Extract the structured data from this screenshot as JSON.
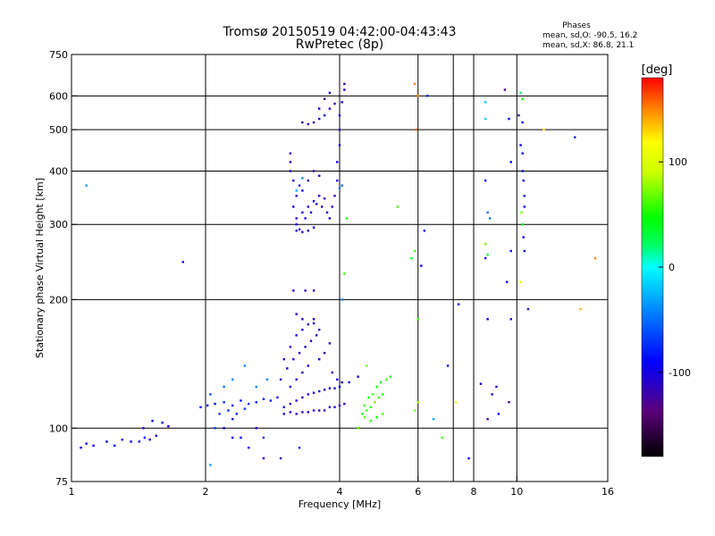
{
  "chart_data": {
    "type": "scatter",
    "title": "Tromsø 20150519 04:42:00-04:43:43",
    "subtitle": "RwPretec (8p)",
    "xlabel": "Frequency [MHz]",
    "ylabel": "Stationary phase Virtual Height [km]",
    "x_scale": "log",
    "y_scale": "log",
    "xlim": [
      1,
      16
    ],
    "ylim": [
      75,
      750
    ],
    "x_ticks": [
      1,
      2,
      4,
      6,
      8,
      10,
      16
    ],
    "x_tick_labels": [
      "1",
      "2",
      "4",
      "6",
      "8",
      "10",
      "16"
    ],
    "y_ticks": [
      75,
      100,
      200,
      300,
      400,
      500,
      600,
      750
    ],
    "y_tick_labels": [
      "75",
      "100",
      "200",
      "300",
      "400",
      "500",
      "600",
      "750"
    ],
    "x_grid": [
      2,
      4,
      6,
      7.2,
      8,
      10
    ],
    "y_grid": [
      100,
      200,
      300,
      400,
      500,
      600
    ],
    "phase_info": {
      "heading": "Phases",
      "line_o": "mean, sd,O: -90.5, 16.2",
      "line_x": "mean, sd,X:  86.8, 21.1"
    },
    "colorbar": {
      "label": "[deg]",
      "range": [
        -180,
        180
      ],
      "ticks": [
        100,
        0,
        -100
      ],
      "tick_labels": [
        "100",
        "0",
        "-100"
      ]
    },
    "series": [
      {
        "points": [
          [
            1.05,
            90,
            -100
          ],
          [
            1.08,
            92,
            -90
          ],
          [
            1.12,
            91,
            -95
          ],
          [
            1.2,
            93,
            -100
          ],
          [
            1.25,
            91,
            -90
          ],
          [
            1.3,
            94,
            -100
          ],
          [
            1.36,
            93,
            -95
          ],
          [
            1.42,
            93,
            -100
          ],
          [
            1.46,
            95,
            -90
          ],
          [
            1.5,
            94,
            -100
          ],
          [
            1.55,
            96,
            -95
          ],
          [
            1.45,
            100,
            -100
          ],
          [
            1.52,
            104,
            -95
          ],
          [
            1.6,
            103,
            -90
          ],
          [
            1.65,
            101,
            -100
          ],
          [
            1.08,
            370,
            -30
          ],
          [
            1.78,
            245,
            -100
          ],
          [
            1.95,
            112,
            -80
          ],
          [
            2.02,
            113,
            -85
          ],
          [
            2.1,
            114,
            -90
          ],
          [
            2.2,
            115,
            -75
          ],
          [
            2.3,
            113,
            -80
          ],
          [
            2.4,
            116,
            -85
          ],
          [
            2.5,
            114,
            -70
          ],
          [
            2.6,
            115,
            -80
          ],
          [
            2.7,
            117,
            -85
          ],
          [
            2.8,
            116,
            -75
          ],
          [
            2.9,
            118,
            -80
          ],
          [
            2.15,
            108,
            -70
          ],
          [
            2.25,
            110,
            -75
          ],
          [
            2.35,
            108,
            -80
          ],
          [
            2.45,
            111,
            -70
          ],
          [
            2.05,
            120,
            -60
          ],
          [
            2.2,
            125,
            -50
          ],
          [
            2.3,
            130,
            -40
          ],
          [
            2.45,
            140,
            -40
          ],
          [
            2.6,
            125,
            -40
          ],
          [
            2.75,
            130,
            -40
          ],
          [
            2.2,
            100,
            -90
          ],
          [
            2.3,
            95,
            -95
          ],
          [
            2.5,
            90,
            -100
          ],
          [
            2.7,
            85,
            -100
          ],
          [
            2.05,
            82,
            -30
          ],
          [
            2.1,
            100,
            -70
          ],
          [
            3.0,
            108,
            -110
          ],
          [
            3.1,
            109,
            -105
          ],
          [
            3.2,
            108,
            -110
          ],
          [
            3.3,
            109,
            -110
          ],
          [
            3.4,
            109,
            -105
          ],
          [
            3.5,
            110,
            -110
          ],
          [
            3.6,
            110,
            -105
          ],
          [
            3.7,
            110,
            -110
          ],
          [
            3.8,
            112,
            -105
          ],
          [
            3.9,
            112,
            -110
          ],
          [
            4.0,
            113,
            -105
          ],
          [
            4.1,
            114,
            -110
          ],
          [
            3.0,
            112,
            -100
          ],
          [
            3.1,
            114,
            -105
          ],
          [
            3.2,
            116,
            -100
          ],
          [
            3.3,
            118,
            -105
          ],
          [
            3.4,
            120,
            -100
          ],
          [
            3.5,
            121,
            -105
          ],
          [
            3.6,
            122,
            -100
          ],
          [
            3.7,
            123,
            -105
          ],
          [
            3.8,
            124,
            -100
          ],
          [
            3.9,
            124,
            -105
          ],
          [
            4.0,
            125,
            -100
          ],
          [
            4.2,
            128,
            -100
          ],
          [
            4.4,
            132,
            -100
          ],
          [
            2.95,
            130,
            -110
          ],
          [
            3.05,
            138,
            -105
          ],
          [
            3.15,
            145,
            -110
          ],
          [
            3.25,
            150,
            -105
          ],
          [
            3.35,
            155,
            -110
          ],
          [
            3.45,
            160,
            -100
          ],
          [
            3.55,
            165,
            -105
          ],
          [
            3.0,
            145,
            -110
          ],
          [
            3.1,
            155,
            -105
          ],
          [
            3.2,
            165,
            -100
          ],
          [
            3.3,
            170,
            -105
          ],
          [
            3.4,
            175,
            -110
          ],
          [
            3.5,
            180,
            -100
          ],
          [
            3.1,
            125,
            -105
          ],
          [
            3.2,
            130,
            -100
          ],
          [
            3.3,
            135,
            -110
          ],
          [
            3.4,
            140,
            -105
          ],
          [
            3.6,
            145,
            -100
          ],
          [
            3.7,
            150,
            -105
          ],
          [
            3.8,
            158,
            -110
          ],
          [
            3.2,
            185,
            -110
          ],
          [
            3.3,
            180,
            -105
          ],
          [
            3.5,
            176,
            -100
          ],
          [
            3.6,
            170,
            -110
          ],
          [
            3.35,
            210,
            -110
          ],
          [
            3.5,
            210,
            -105
          ],
          [
            3.15,
            210,
            -105
          ],
          [
            3.85,
            135,
            -105
          ],
          [
            3.95,
            130,
            -100
          ],
          [
            4.05,
            128,
            -105
          ],
          [
            4.5,
            108,
            40
          ],
          [
            4.6,
            110,
            60
          ],
          [
            4.7,
            112,
            50
          ],
          [
            4.8,
            115,
            70
          ],
          [
            4.9,
            118,
            60
          ],
          [
            5.0,
            120,
            50
          ],
          [
            4.55,
            113,
            55
          ],
          [
            4.65,
            118,
            45
          ],
          [
            4.75,
            120,
            60
          ],
          [
            4.85,
            125,
            50
          ],
          [
            4.95,
            128,
            40
          ],
          [
            5.1,
            130,
            60
          ],
          [
            5.2,
            132,
            50
          ],
          [
            4.55,
            106,
            65
          ],
          [
            4.7,
            104,
            55
          ],
          [
            4.85,
            106,
            45
          ],
          [
            5.0,
            108,
            60
          ],
          [
            4.4,
            100,
            65
          ],
          [
            3.2,
            290,
            -110
          ],
          [
            3.25,
            292,
            -105
          ],
          [
            3.3,
            288,
            -110
          ],
          [
            3.4,
            290,
            -105
          ],
          [
            3.5,
            295,
            -100
          ],
          [
            3.2,
            310,
            -110
          ],
          [
            3.3,
            320,
            -105
          ],
          [
            3.4,
            330,
            -110
          ],
          [
            3.5,
            340,
            -100
          ],
          [
            3.6,
            350,
            -105
          ],
          [
            3.7,
            345,
            -110
          ],
          [
            3.2,
            300,
            -100
          ],
          [
            3.35,
            310,
            -105
          ],
          [
            3.45,
            320,
            -100
          ],
          [
            3.55,
            335,
            -110
          ],
          [
            3.65,
            330,
            -105
          ],
          [
            3.75,
            320,
            -100
          ],
          [
            3.15,
            330,
            -105
          ],
          [
            3.2,
            350,
            -110
          ],
          [
            3.25,
            370,
            -105
          ],
          [
            3.3,
            360,
            -100
          ],
          [
            3.4,
            380,
            -110
          ],
          [
            3.5,
            400,
            -105
          ],
          [
            3.6,
            390,
            -110
          ],
          [
            3.15,
            380,
            -100
          ],
          [
            3.1,
            400,
            -105
          ],
          [
            3.1,
            420,
            -110
          ],
          [
            3.1,
            440,
            -105
          ],
          [
            3.8,
            310,
            -100
          ],
          [
            3.85,
            330,
            -105
          ],
          [
            3.9,
            350,
            -110
          ],
          [
            3.95,
            380,
            -105
          ],
          [
            3.95,
            420,
            -100
          ],
          [
            4.0,
            460,
            -105
          ],
          [
            4.0,
            500,
            -110
          ],
          [
            4.0,
            540,
            -105
          ],
          [
            4.05,
            580,
            -100
          ],
          [
            4.1,
            620,
            -105
          ],
          [
            4.1,
            640,
            -110
          ],
          [
            3.5,
            520,
            -110
          ],
          [
            3.6,
            530,
            -105
          ],
          [
            3.7,
            540,
            -100
          ],
          [
            3.8,
            560,
            -105
          ],
          [
            3.9,
            575,
            -110
          ],
          [
            3.6,
            560,
            -100
          ],
          [
            3.7,
            590,
            -105
          ],
          [
            3.8,
            610,
            -110
          ],
          [
            3.3,
            520,
            -110
          ],
          [
            3.4,
            515,
            -105
          ],
          [
            3.2,
            360,
            -30
          ],
          [
            3.3,
            385,
            -40
          ],
          [
            4.05,
            370,
            -50
          ],
          [
            4.0,
            365,
            -45
          ],
          [
            4.05,
            200,
            -40
          ],
          [
            4.1,
            230,
            60
          ],
          [
            4.15,
            310,
            50
          ],
          [
            4.6,
            140,
            70
          ],
          [
            5.4,
            330,
            60
          ],
          [
            5.8,
            250,
            40
          ],
          [
            5.9,
            260,
            60
          ],
          [
            5.9,
            640,
            150
          ],
          [
            5.95,
            500,
            160
          ],
          [
            6.0,
            600,
            150
          ],
          [
            6.3,
            600,
            -80
          ],
          [
            6.2,
            290,
            -90
          ],
          [
            6.1,
            240,
            -90
          ],
          [
            6.0,
            180,
            60
          ],
          [
            5.9,
            110,
            70
          ],
          [
            6.0,
            115,
            80
          ],
          [
            6.5,
            105,
            -30
          ],
          [
            6.8,
            95,
            60
          ],
          [
            7.3,
            115,
            110
          ],
          [
            7.8,
            85,
            -90
          ],
          [
            7.0,
            140,
            -80
          ],
          [
            7.4,
            195,
            -90
          ],
          [
            8.5,
            580,
            -20
          ],
          [
            8.5,
            530,
            -20
          ],
          [
            8.5,
            380,
            -90
          ],
          [
            8.6,
            320,
            -50
          ],
          [
            8.7,
            310,
            -50
          ],
          [
            8.5,
            270,
            70
          ],
          [
            8.6,
            255,
            40
          ],
          [
            8.5,
            250,
            -90
          ],
          [
            8.6,
            180,
            -90
          ],
          [
            8.3,
            127,
            -110
          ],
          [
            8.6,
            105,
            -130
          ],
          [
            8.8,
            120,
            -110
          ],
          [
            9.0,
            125,
            -110
          ],
          [
            9.1,
            108,
            -90
          ],
          [
            9.4,
            620,
            -130
          ],
          [
            9.5,
            220,
            -90
          ],
          [
            9.6,
            530,
            -90
          ],
          [
            9.7,
            420,
            -90
          ],
          [
            9.7,
            260,
            -90
          ],
          [
            9.7,
            180,
            -110
          ],
          [
            9.6,
            115,
            -120
          ],
          [
            10.2,
            610,
            20
          ],
          [
            10.3,
            590,
            50
          ],
          [
            10.1,
            540,
            -130
          ],
          [
            10.3,
            520,
            -80
          ],
          [
            10.2,
            460,
            -90
          ],
          [
            10.3,
            440,
            -90
          ],
          [
            10.3,
            400,
            -90
          ],
          [
            10.35,
            380,
            -90
          ],
          [
            10.4,
            350,
            -100
          ],
          [
            10.4,
            330,
            -90
          ],
          [
            10.3,
            300,
            -100
          ],
          [
            10.35,
            280,
            -100
          ],
          [
            10.4,
            260,
            -100
          ],
          [
            10.25,
            320,
            70
          ],
          [
            10.3,
            300,
            50
          ],
          [
            10.2,
            220,
            110
          ],
          [
            10.6,
            190,
            -120
          ],
          [
            11.5,
            500,
            120
          ],
          [
            13.5,
            480,
            -80
          ],
          [
            13.9,
            190,
            140
          ],
          [
            15.0,
            250,
            150
          ],
          [
            3.25,
            90,
            -80
          ],
          [
            2.95,
            85,
            -120
          ],
          [
            2.6,
            100,
            -100
          ],
          [
            2.4,
            95,
            -90
          ],
          [
            2.3,
            105,
            -80
          ],
          [
            2.7,
            95,
            -70
          ]
        ]
      }
    ]
  }
}
